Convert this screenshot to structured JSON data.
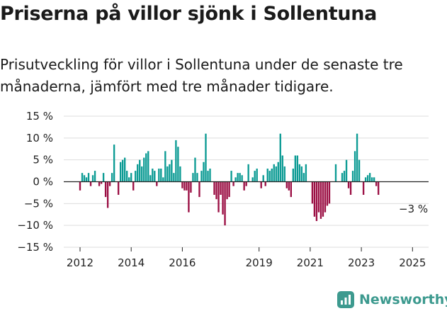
{
  "title": "Priserna på villor sjönk i Sollentuna",
  "subtitle": "Prisutveckling för villor i Sollentuna under de senaste tre månaderna, jämfört med tre månader tidigare.",
  "brand": {
    "name": "Newsworthy",
    "color": "#3d9a8f"
  },
  "colors": {
    "positive": "#0c9b94",
    "negative": "#9b0f44",
    "grid": "#dddddd",
    "axis": "#222222"
  },
  "chart_data": {
    "type": "bar",
    "x_start": "2012-01",
    "ylim": [
      -15,
      15
    ],
    "y_ticks": [
      15,
      10,
      5,
      0,
      -5,
      -10,
      -15
    ],
    "y_tick_labels": [
      "15 %",
      "10 %",
      "5 %",
      "0 %",
      "−5 %",
      "−10 %",
      "−15 %"
    ],
    "x_ticks": [
      {
        "year": 2012,
        "label": "2012"
      },
      {
        "year": 2014,
        "label": "2014"
      },
      {
        "year": 2016,
        "label": "2016"
      },
      {
        "year": 2019,
        "label": "2019"
      },
      {
        "year": 2021,
        "label": "2021"
      },
      {
        "year": 2023,
        "label": "2023"
      },
      {
        "year": 2025,
        "label": "2025"
      }
    ],
    "last_value_label": "−3 %",
    "values": [
      -2,
      2,
      1.5,
      1,
      2,
      -1,
      1.5,
      2.5,
      0,
      -1,
      -0.5,
      2,
      -3.5,
      -6,
      -1,
      2,
      8.5,
      0,
      -3,
      4.5,
      5,
      5.5,
      2.5,
      1,
      2,
      -2,
      2.5,
      4,
      5,
      3.5,
      5.5,
      6.5,
      7,
      1.5,
      3,
      2.5,
      -1,
      3,
      3,
      1,
      7,
      3.5,
      4,
      5,
      2,
      9.5,
      8,
      3.5,
      -1.5,
      -2,
      -2,
      -7,
      -2.5,
      2,
      5.5,
      2,
      -3.5,
      2.5,
      4.5,
      11,
      2.5,
      3,
      0,
      -3,
      -4,
      -7,
      -3,
      -7.5,
      -10,
      -4,
      -3.5,
      2.5,
      -1,
      1,
      2,
      2,
      1.5,
      -2,
      -1,
      4,
      0,
      1,
      2.5,
      3,
      0,
      -1.5,
      1.5,
      -1,
      3,
      2.5,
      3,
      4,
      3.5,
      4.5,
      11,
      6,
      3.5,
      -1.5,
      -2,
      -3.5,
      3,
      6,
      6,
      4,
      3.5,
      2,
      4,
      0,
      0,
      -5,
      -8,
      -9,
      -7,
      -8.5,
      -8,
      -7,
      -5.5,
      -5,
      0,
      0,
      4,
      0,
      0,
      2,
      2.5,
      5,
      -1.5,
      -3,
      2.5,
      7,
      11,
      5,
      0,
      -3,
      1,
      1.5,
      2,
      1,
      1,
      -1,
      -3
    ]
  }
}
